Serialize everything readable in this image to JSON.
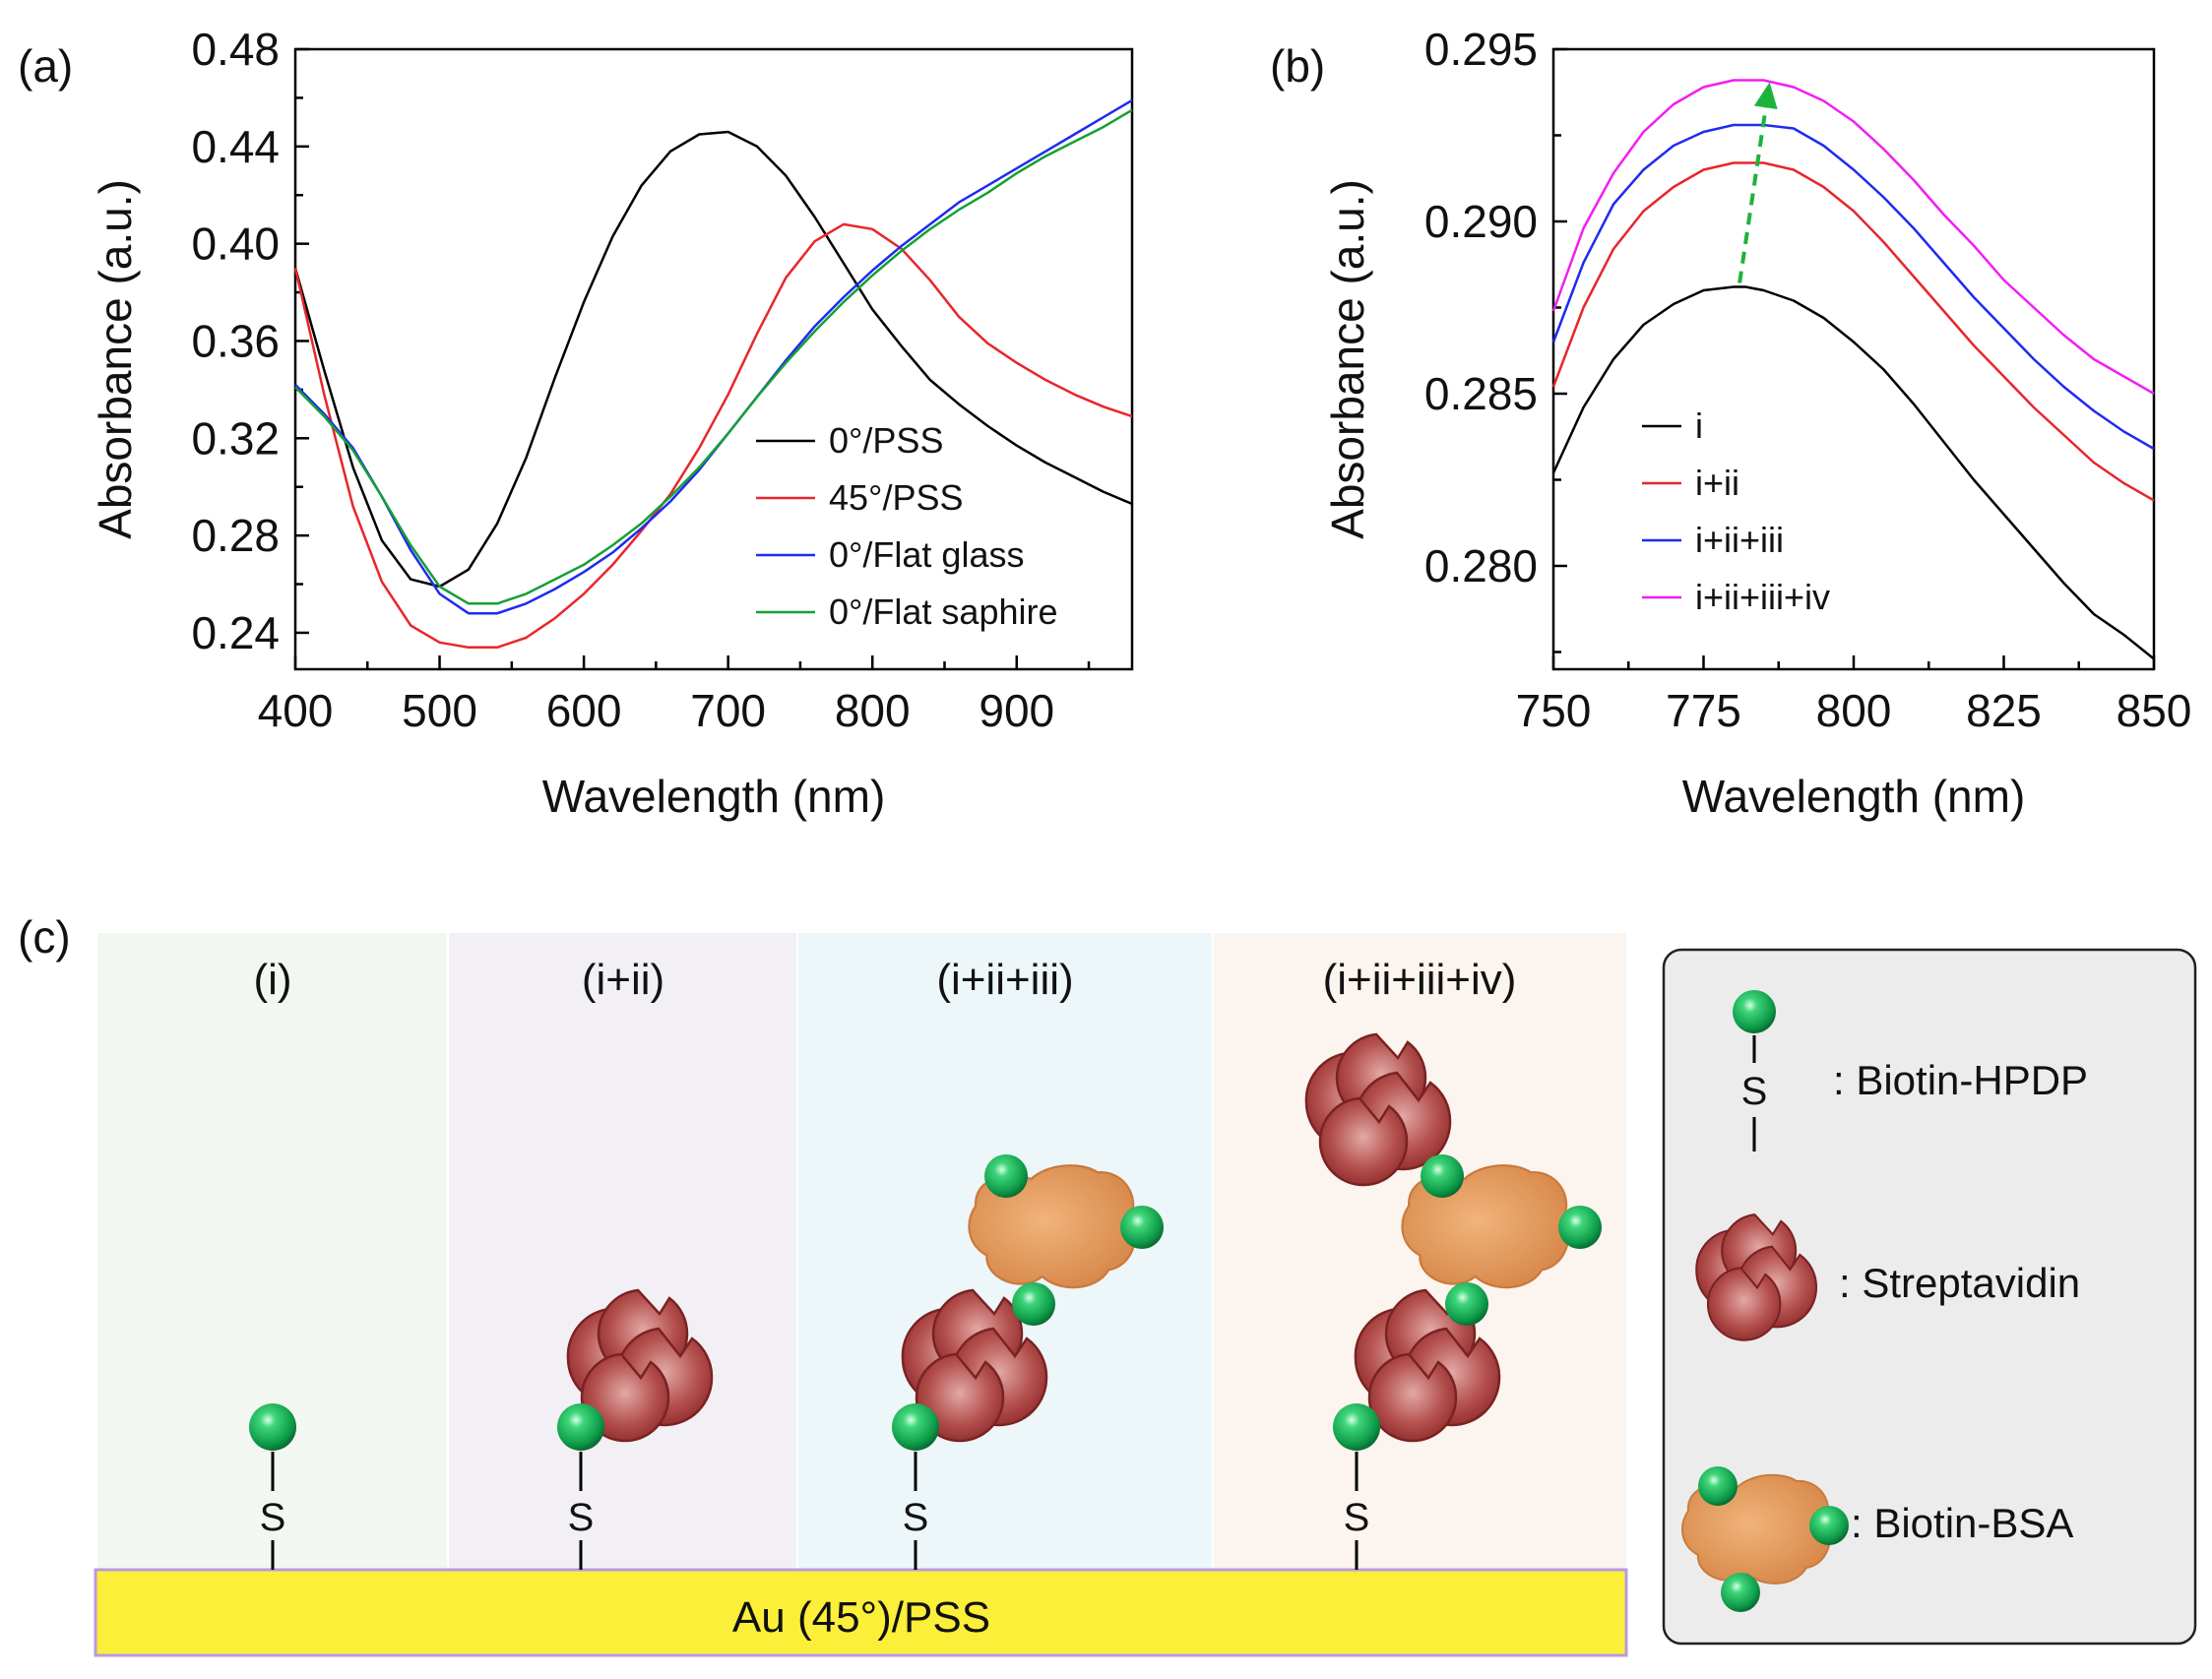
{
  "chart_data": [
    {
      "panel": "(a)",
      "type": "line",
      "xlabel": "Wavelength (nm)",
      "ylabel": "Absorbance (a.u.)",
      "xlim": [
        400,
        980
      ],
      "ylim": [
        0.225,
        0.48
      ],
      "xticks": [
        400,
        500,
        600,
        700,
        800,
        900
      ],
      "yticks": [
        0.24,
        0.28,
        0.32,
        0.36,
        0.4,
        0.44,
        0.48
      ],
      "ytick_labels": [
        "0.24",
        "0.28",
        "0.32",
        "0.36",
        "0.40",
        "0.44",
        "0.48"
      ],
      "legend_position": "center-right",
      "series": [
        {
          "name": "0°/PSS",
          "color": "#000000",
          "x": [
            400,
            420,
            440,
            460,
            480,
            500,
            520,
            540,
            560,
            580,
            600,
            620,
            640,
            660,
            680,
            700,
            720,
            740,
            760,
            780,
            800,
            820,
            840,
            860,
            880,
            900,
            920,
            940,
            960,
            980
          ],
          "y": [
            0.39,
            0.348,
            0.308,
            0.278,
            0.262,
            0.259,
            0.266,
            0.285,
            0.312,
            0.345,
            0.376,
            0.403,
            0.424,
            0.438,
            0.445,
            0.446,
            0.44,
            0.428,
            0.411,
            0.392,
            0.373,
            0.358,
            0.344,
            0.334,
            0.325,
            0.317,
            0.31,
            0.304,
            0.298,
            0.293
          ]
        },
        {
          "name": "45°/PSS",
          "color": "#e8262b",
          "x": [
            400,
            420,
            440,
            460,
            480,
            500,
            520,
            540,
            560,
            580,
            600,
            620,
            640,
            660,
            680,
            700,
            720,
            740,
            760,
            780,
            800,
            820,
            840,
            860,
            880,
            900,
            920,
            940,
            960,
            980
          ],
          "y": [
            0.39,
            0.338,
            0.292,
            0.261,
            0.243,
            0.236,
            0.234,
            0.234,
            0.238,
            0.246,
            0.256,
            0.268,
            0.282,
            0.297,
            0.316,
            0.338,
            0.363,
            0.386,
            0.401,
            0.408,
            0.406,
            0.398,
            0.385,
            0.37,
            0.359,
            0.351,
            0.344,
            0.338,
            0.333,
            0.329
          ]
        },
        {
          "name": "0°/Flat glass",
          "color": "#1f2bf0",
          "x": [
            400,
            420,
            440,
            460,
            480,
            500,
            520,
            540,
            560,
            580,
            600,
            620,
            640,
            660,
            680,
            700,
            720,
            740,
            760,
            780,
            800,
            820,
            840,
            860,
            880,
            900,
            920,
            940,
            960,
            980
          ],
          "y": [
            0.342,
            0.33,
            0.316,
            0.296,
            0.274,
            0.256,
            0.248,
            0.248,
            0.252,
            0.258,
            0.265,
            0.273,
            0.283,
            0.294,
            0.307,
            0.322,
            0.337,
            0.352,
            0.366,
            0.378,
            0.389,
            0.399,
            0.408,
            0.417,
            0.424,
            0.431,
            0.438,
            0.445,
            0.452,
            0.459
          ]
        },
        {
          "name": "0°/Flat saphire",
          "color": "#15a035",
          "x": [
            400,
            420,
            440,
            460,
            480,
            500,
            520,
            540,
            560,
            580,
            600,
            620,
            640,
            660,
            680,
            700,
            720,
            740,
            760,
            780,
            800,
            820,
            840,
            860,
            880,
            900,
            920,
            940,
            960,
            980
          ],
          "y": [
            0.341,
            0.329,
            0.315,
            0.296,
            0.276,
            0.259,
            0.252,
            0.252,
            0.256,
            0.262,
            0.268,
            0.276,
            0.285,
            0.296,
            0.308,
            0.322,
            0.337,
            0.351,
            0.364,
            0.376,
            0.387,
            0.397,
            0.406,
            0.414,
            0.421,
            0.429,
            0.436,
            0.442,
            0.448,
            0.455
          ]
        }
      ]
    },
    {
      "panel": "(b)",
      "type": "line",
      "xlabel": "Wavelength (nm)",
      "ylabel": "Absorbance (a.u.)",
      "xlim": [
        750,
        850
      ],
      "ylim": [
        0.277,
        0.295
      ],
      "xticks": [
        750,
        775,
        800,
        825,
        850
      ],
      "yticks": [
        0.28,
        0.285,
        0.29,
        0.295
      ],
      "ytick_labels": [
        "0.280",
        "0.285",
        "0.290",
        "0.295"
      ],
      "legend_position": "bottom-left",
      "annotation": "dashed green arrow from peak of i up to peak of i+ii+iii+iv",
      "arrow": {
        "from": [
          781,
          0.2881
        ],
        "to": [
          786,
          0.2941
        ],
        "color": "#1db33b"
      },
      "series": [
        {
          "name": "i",
          "color": "#000000",
          "x": [
            750,
            755,
            760,
            765,
            770,
            775,
            780,
            782,
            785,
            790,
            795,
            800,
            805,
            810,
            815,
            820,
            825,
            830,
            835,
            840,
            845,
            850
          ],
          "y": [
            0.2827,
            0.2846,
            0.286,
            0.287,
            0.2876,
            0.288,
            0.2881,
            0.2881,
            0.288,
            0.2877,
            0.2872,
            0.2865,
            0.2857,
            0.2847,
            0.2836,
            0.2825,
            0.2815,
            0.2805,
            0.2795,
            0.2786,
            0.278,
            0.2773
          ]
        },
        {
          "name": "i+ii",
          "color": "#e8262b",
          "x": [
            750,
            755,
            760,
            765,
            770,
            775,
            780,
            785,
            790,
            795,
            800,
            805,
            810,
            815,
            820,
            825,
            830,
            835,
            840,
            845,
            850
          ],
          "y": [
            0.2852,
            0.2875,
            0.2892,
            0.2903,
            0.291,
            0.2915,
            0.2917,
            0.2917,
            0.2915,
            0.291,
            0.2903,
            0.2894,
            0.2884,
            0.2874,
            0.2864,
            0.2855,
            0.2846,
            0.2838,
            0.283,
            0.2824,
            0.2819
          ]
        },
        {
          "name": "i+ii+iii",
          "color": "#1f2bf0",
          "x": [
            750,
            755,
            760,
            765,
            770,
            775,
            780,
            785,
            790,
            795,
            800,
            805,
            810,
            815,
            820,
            825,
            830,
            835,
            840,
            845,
            850
          ],
          "y": [
            0.2865,
            0.2888,
            0.2905,
            0.2915,
            0.2922,
            0.2926,
            0.2928,
            0.2928,
            0.2927,
            0.2922,
            0.2915,
            0.2907,
            0.2898,
            0.2888,
            0.2878,
            0.2869,
            0.286,
            0.2852,
            0.2845,
            0.2839,
            0.2834
          ]
        },
        {
          "name": "i+ii+iii+iv",
          "color": "#f21ef2",
          "x": [
            750,
            755,
            760,
            765,
            770,
            775,
            780,
            785,
            790,
            795,
            800,
            805,
            810,
            815,
            820,
            825,
            830,
            835,
            840,
            845,
            850
          ],
          "y": [
            0.2874,
            0.2898,
            0.2914,
            0.2926,
            0.2934,
            0.2939,
            0.2941,
            0.2941,
            0.2939,
            0.2935,
            0.2929,
            0.2921,
            0.2912,
            0.2902,
            0.2893,
            0.2883,
            0.2875,
            0.2867,
            0.286,
            0.2855,
            0.285
          ]
        }
      ]
    }
  ],
  "diagram": {
    "panel_label": "(c)",
    "stages": [
      {
        "label": "(i)",
        "color": "#f3f7f1"
      },
      {
        "label": "(i+ii)",
        "color": "#f3f0f5"
      },
      {
        "label": "(i+ii+iii)",
        "color": "#edf6f9"
      },
      {
        "label": "(i+ii+iii+iv)",
        "color": "#fcf4ee"
      }
    ],
    "sulfur_label": "S",
    "substrate_label": "Au (45°)/PSS",
    "substrate_color": "#fcef3a",
    "legend": [
      {
        "icon": "biotin-hpdp",
        "label": ": Biotin-HPDP"
      },
      {
        "icon": "streptavidin",
        "label": ": Streptavidin"
      },
      {
        "icon": "biotin-bsa",
        "label": ": Biotin-BSA"
      }
    ]
  }
}
